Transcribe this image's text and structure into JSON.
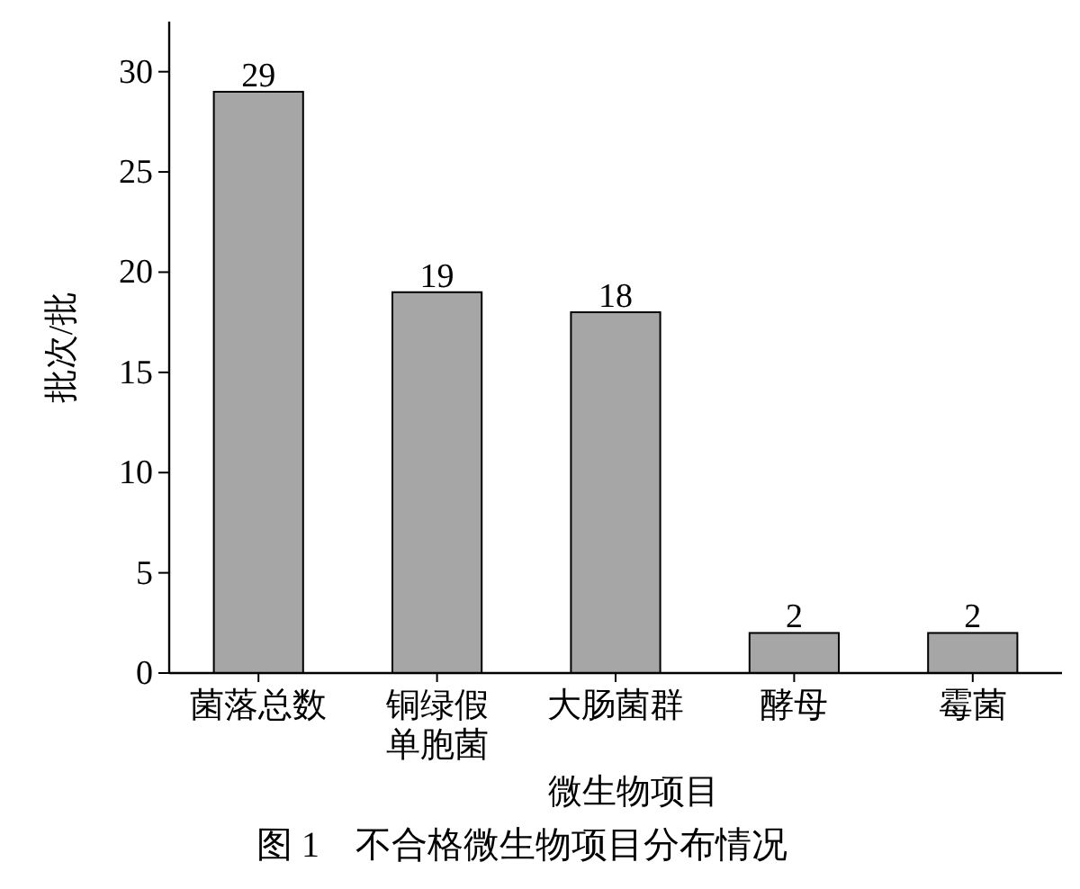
{
  "chart_data": {
    "type": "bar",
    "title": "图 1    不合格微生物项目分布情况",
    "xlabel": "微生物项目",
    "ylabel": "批次/批",
    "categories": [
      "菌落总数",
      "铜绿假单胞菌",
      "大肠菌群",
      "酵母",
      "霉菌"
    ],
    "values": [
      29,
      19,
      18,
      2,
      2
    ],
    "color": "#a6a6a6",
    "ylim": [
      0,
      32.5
    ],
    "yticks": [
      0,
      5,
      10,
      15,
      20,
      25,
      30
    ],
    "data_labels": true,
    "grid": false
  }
}
